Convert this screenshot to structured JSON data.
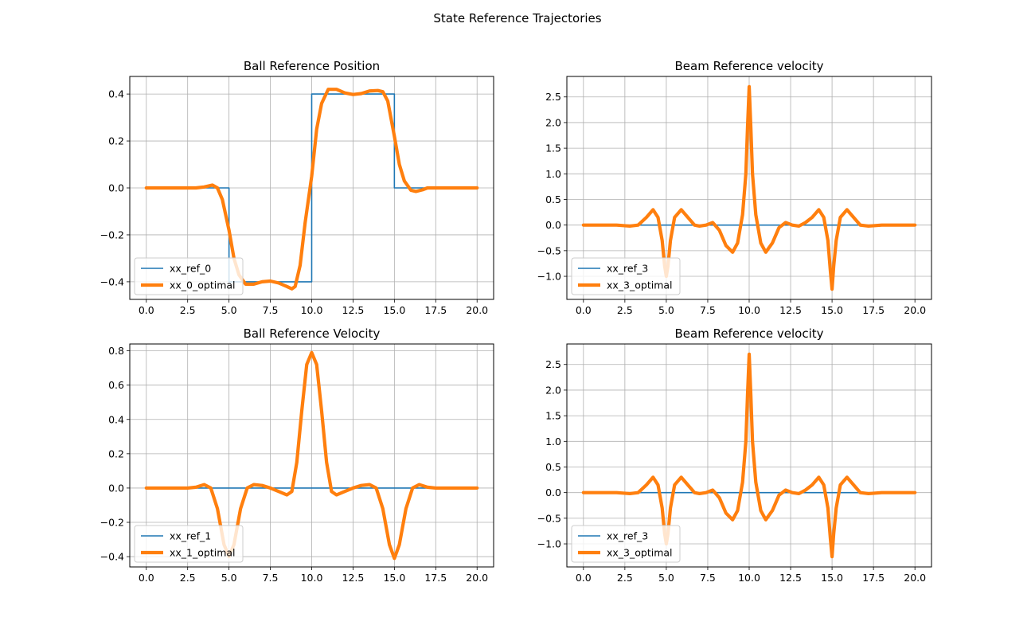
{
  "figure": {
    "suptitle": "State Reference Trajectories"
  },
  "chart_data": [
    {
      "type": "line",
      "title": "Ball Reference Position",
      "xlabel": "",
      "ylabel": "",
      "xlim": [
        -1.0,
        21.0
      ],
      "ylim": [
        -0.475,
        0.475
      ],
      "xticks": [
        0.0,
        2.5,
        5.0,
        7.5,
        10.0,
        12.5,
        15.0,
        17.5,
        20.0
      ],
      "xtick_labels": [
        "0.0",
        "2.5",
        "5.0",
        "7.5",
        "10.0",
        "12.5",
        "15.0",
        "17.5",
        "20.0"
      ],
      "yticks": [
        -0.4,
        -0.2,
        0.0,
        0.2,
        0.4
      ],
      "ytick_labels": [
        "−0.4",
        "−0.2",
        "0.0",
        "0.2",
        "0.4"
      ],
      "grid": true,
      "legend_position": "lower-left",
      "series": [
        {
          "name": "xx_ref_0",
          "color": "#1f77b4",
          "x": [
            0,
            5,
            5,
            10,
            10,
            15,
            15,
            20
          ],
          "y": [
            0,
            0,
            -0.4,
            -0.4,
            0.4,
            0.4,
            0,
            0
          ]
        },
        {
          "name": "xx_0_optimal",
          "color": "#ff7f0e",
          "x": [
            0,
            3.0,
            3.5,
            4.0,
            4.3,
            4.6,
            5.0,
            5.3,
            5.6,
            6.0,
            6.5,
            7.0,
            7.5,
            8.0,
            8.5,
            8.8,
            9.0,
            9.3,
            9.6,
            10.0,
            10.3,
            10.6,
            11.0,
            11.5,
            12.0,
            12.5,
            13.0,
            13.5,
            14.0,
            14.3,
            14.6,
            15.0,
            15.3,
            15.6,
            16.0,
            16.3,
            16.7,
            17.0,
            17.5,
            18.0,
            20.0
          ],
          "y": [
            0,
            0.0,
            0.004,
            0.012,
            0.0,
            -0.05,
            -0.18,
            -0.3,
            -0.37,
            -0.41,
            -0.41,
            -0.4,
            -0.397,
            -0.405,
            -0.42,
            -0.43,
            -0.42,
            -0.33,
            -0.15,
            0.05,
            0.25,
            0.36,
            0.42,
            0.42,
            0.405,
            0.398,
            0.402,
            0.413,
            0.415,
            0.41,
            0.37,
            0.22,
            0.1,
            0.03,
            -0.01,
            -0.015,
            -0.008,
            0.0,
            0.0,
            0.0,
            0.0
          ]
        }
      ]
    },
    {
      "type": "line",
      "title": "Beam Reference velocity",
      "xlabel": "",
      "ylabel": "",
      "xlim": [
        -1.0,
        21.0
      ],
      "ylim": [
        -1.45,
        2.9
      ],
      "xticks": [
        0.0,
        2.5,
        5.0,
        7.5,
        10.0,
        12.5,
        15.0,
        17.5,
        20.0
      ],
      "xtick_labels": [
        "0.0",
        "2.5",
        "5.0",
        "7.5",
        "10.0",
        "12.5",
        "15.0",
        "17.5",
        "20.0"
      ],
      "yticks": [
        -1.0,
        -0.5,
        0.0,
        0.5,
        1.0,
        1.5,
        2.0,
        2.5
      ],
      "ytick_labels": [
        "−1.0",
        "−0.5",
        "0.0",
        "0.5",
        "1.0",
        "1.5",
        "2.0",
        "2.5"
      ],
      "grid": true,
      "legend_position": "lower-left",
      "series": [
        {
          "name": "xx_ref_3",
          "color": "#1f77b4",
          "x": [
            0,
            20
          ],
          "y": [
            0,
            0
          ]
        },
        {
          "name": "xx_3_optimal",
          "color": "#ff7f0e",
          "x": [
            0,
            2.0,
            2.8,
            3.3,
            3.8,
            4.2,
            4.5,
            4.75,
            4.9,
            5.0,
            5.1,
            5.25,
            5.5,
            5.9,
            6.3,
            6.7,
            7.0,
            7.4,
            7.8,
            8.2,
            8.6,
            9.0,
            9.3,
            9.6,
            9.8,
            9.9,
            10.0,
            10.1,
            10.2,
            10.4,
            10.7,
            11.0,
            11.4,
            11.8,
            12.2,
            12.6,
            13.0,
            13.4,
            13.8,
            14.2,
            14.5,
            14.75,
            14.9,
            15.0,
            15.1,
            15.25,
            15.5,
            15.9,
            16.3,
            16.7,
            17.2,
            18.0,
            20.0
          ],
          "y": [
            0,
            0.0,
            -0.02,
            0.0,
            0.15,
            0.3,
            0.15,
            -0.3,
            -0.8,
            -1.0,
            -0.8,
            -0.3,
            0.15,
            0.3,
            0.15,
            0.0,
            -0.02,
            0.0,
            0.05,
            -0.1,
            -0.4,
            -0.53,
            -0.35,
            0.2,
            1.0,
            1.9,
            2.7,
            1.9,
            1.0,
            0.2,
            -0.35,
            -0.53,
            -0.35,
            -0.05,
            0.05,
            0.0,
            -0.02,
            0.05,
            0.15,
            0.3,
            0.15,
            -0.3,
            -0.9,
            -1.25,
            -0.8,
            -0.3,
            0.15,
            0.3,
            0.15,
            0.0,
            -0.02,
            0.0,
            0.0
          ]
        }
      ]
    },
    {
      "type": "line",
      "title": "Ball Reference Velocity",
      "xlabel": "",
      "ylabel": "",
      "xlim": [
        -1.0,
        21.0
      ],
      "ylim": [
        -0.46,
        0.84
      ],
      "xticks": [
        0.0,
        2.5,
        5.0,
        7.5,
        10.0,
        12.5,
        15.0,
        17.5,
        20.0
      ],
      "xtick_labels": [
        "0.0",
        "2.5",
        "5.0",
        "7.5",
        "10.0",
        "12.5",
        "15.0",
        "17.5",
        "20.0"
      ],
      "yticks": [
        -0.4,
        -0.2,
        0.0,
        0.2,
        0.4,
        0.6,
        0.8
      ],
      "ytick_labels": [
        "−0.4",
        "−0.2",
        "0.0",
        "0.2",
        "0.4",
        "0.6",
        "0.8"
      ],
      "grid": true,
      "legend_position": "lower-left",
      "series": [
        {
          "name": "xx_ref_1",
          "color": "#1f77b4",
          "x": [
            0,
            20
          ],
          "y": [
            0,
            0
          ]
        },
        {
          "name": "xx_1_optimal",
          "color": "#ff7f0e",
          "x": [
            0,
            2.5,
            3.0,
            3.5,
            3.9,
            4.3,
            4.7,
            5.0,
            5.3,
            5.7,
            6.1,
            6.5,
            7.0,
            7.5,
            8.0,
            8.5,
            8.8,
            9.1,
            9.4,
            9.7,
            10.0,
            10.3,
            10.6,
            10.9,
            11.2,
            11.5,
            12.0,
            12.5,
            13.0,
            13.5,
            13.9,
            14.3,
            14.7,
            15.0,
            15.3,
            15.7,
            16.1,
            16.5,
            17.0,
            17.5,
            20.0
          ],
          "y": [
            0,
            0.0,
            0.005,
            0.02,
            0.0,
            -0.12,
            -0.33,
            -0.4,
            -0.33,
            -0.12,
            0.0,
            0.02,
            0.015,
            0.0,
            -0.02,
            -0.04,
            -0.02,
            0.15,
            0.45,
            0.72,
            0.79,
            0.72,
            0.45,
            0.15,
            -0.02,
            -0.04,
            -0.02,
            0.0,
            0.015,
            0.02,
            0.0,
            -0.12,
            -0.33,
            -0.41,
            -0.33,
            -0.12,
            0.0,
            0.02,
            0.005,
            0.0,
            0.0
          ]
        }
      ]
    },
    {
      "type": "line",
      "title": "Beam Reference velocity",
      "xlabel": "",
      "ylabel": "",
      "xlim": [
        -1.0,
        21.0
      ],
      "ylim": [
        -1.45,
        2.9
      ],
      "xticks": [
        0.0,
        2.5,
        5.0,
        7.5,
        10.0,
        12.5,
        15.0,
        17.5,
        20.0
      ],
      "xtick_labels": [
        "0.0",
        "2.5",
        "5.0",
        "7.5",
        "10.0",
        "12.5",
        "15.0",
        "17.5",
        "20.0"
      ],
      "yticks": [
        -1.0,
        -0.5,
        0.0,
        0.5,
        1.0,
        1.5,
        2.0,
        2.5
      ],
      "ytick_labels": [
        "−1.0",
        "−0.5",
        "0.0",
        "0.5",
        "1.0",
        "1.5",
        "2.0",
        "2.5"
      ],
      "grid": true,
      "legend_position": "lower-left",
      "series": [
        {
          "name": "xx_ref_3",
          "color": "#1f77b4",
          "x": [
            0,
            20
          ],
          "y": [
            0,
            0
          ]
        },
        {
          "name": "xx_3_optimal",
          "color": "#ff7f0e",
          "x": [
            0,
            2.0,
            2.8,
            3.3,
            3.8,
            4.2,
            4.5,
            4.75,
            4.9,
            5.0,
            5.1,
            5.25,
            5.5,
            5.9,
            6.3,
            6.7,
            7.0,
            7.4,
            7.8,
            8.2,
            8.6,
            9.0,
            9.3,
            9.6,
            9.8,
            9.9,
            10.0,
            10.1,
            10.2,
            10.4,
            10.7,
            11.0,
            11.4,
            11.8,
            12.2,
            12.6,
            13.0,
            13.4,
            13.8,
            14.2,
            14.5,
            14.75,
            14.9,
            15.0,
            15.1,
            15.25,
            15.5,
            15.9,
            16.3,
            16.7,
            17.2,
            18.0,
            20.0
          ],
          "y": [
            0,
            0.0,
            -0.02,
            0.0,
            0.15,
            0.3,
            0.15,
            -0.3,
            -0.8,
            -1.0,
            -0.8,
            -0.3,
            0.15,
            0.3,
            0.15,
            0.0,
            -0.02,
            0.0,
            0.05,
            -0.1,
            -0.4,
            -0.53,
            -0.35,
            0.2,
            1.0,
            1.9,
            2.7,
            1.9,
            1.0,
            0.2,
            -0.35,
            -0.53,
            -0.35,
            -0.05,
            0.05,
            0.0,
            -0.02,
            0.05,
            0.15,
            0.3,
            0.15,
            -0.3,
            -0.9,
            -1.25,
            -0.8,
            -0.3,
            0.15,
            0.3,
            0.15,
            0.0,
            -0.02,
            0.0,
            0.0
          ]
        }
      ]
    }
  ]
}
